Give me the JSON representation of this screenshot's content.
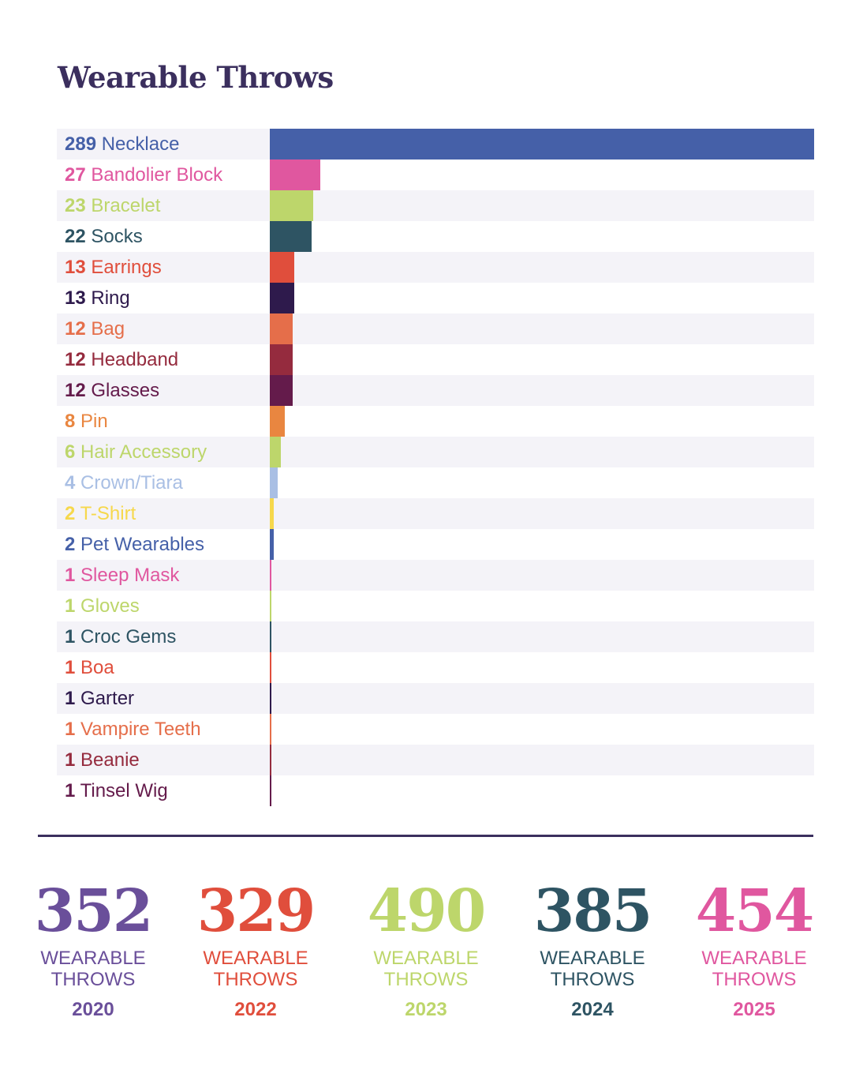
{
  "title": "Wearable Throws",
  "chart_data": {
    "type": "bar",
    "orientation": "horizontal",
    "title": "Wearable Throws",
    "categories": [
      "Necklace",
      "Bandolier Block",
      "Bracelet",
      "Socks",
      "Earrings",
      "Ring",
      "Bag",
      "Headband",
      "Glasses",
      "Pin",
      "Hair Accessory",
      "Crown/Tiara",
      "T-Shirt",
      "Pet Wearables",
      "Sleep Mask",
      "Gloves",
      "Croc Gems",
      "Boa",
      "Garter",
      "Vampire Teeth",
      "Beanie",
      "Tinsel Wig"
    ],
    "values": [
      289,
      27,
      23,
      22,
      13,
      13,
      12,
      12,
      12,
      8,
      6,
      4,
      2,
      2,
      1,
      1,
      1,
      1,
      1,
      1,
      1,
      1
    ],
    "colors": [
      "#4560a8",
      "#e0579f",
      "#bdd66b",
      "#2e5463",
      "#e04e3c",
      "#2e1a4c",
      "#e56e4a",
      "#952b3e",
      "#641b4b",
      "#e98640",
      "#bdd66b",
      "#a9bfe4",
      "#f6d84c",
      "#4560a8",
      "#e0579f",
      "#bdd66b",
      "#2e5463",
      "#e04e3c",
      "#2e1a4c",
      "#e56e4a",
      "#952b3e",
      "#641b4b"
    ],
    "xlim": [
      0,
      289
    ],
    "grid": false,
    "legend": "none",
    "xlabel": "",
    "ylabel": ""
  },
  "stats": [
    {
      "value": "352",
      "label_line1": "WEARABLE",
      "label_line2": "THROWS",
      "year": "2020",
      "color": "#6a4f9a"
    },
    {
      "value": "329",
      "label_line1": "WEARABLE",
      "label_line2": "THROWS",
      "year": "2022",
      "color": "#e04e3c"
    },
    {
      "value": "490",
      "label_line1": "WEARABLE",
      "label_line2": "THROWS",
      "year": "2023",
      "color": "#bdd66b"
    },
    {
      "value": "385",
      "label_line1": "WEARABLE",
      "label_line2": "THROWS",
      "year": "2024",
      "color": "#2e5463"
    },
    {
      "value": "454",
      "label_line1": "WEARABLE",
      "label_line2": "THROWS",
      "year": "2025",
      "color": "#e0579f"
    }
  ]
}
